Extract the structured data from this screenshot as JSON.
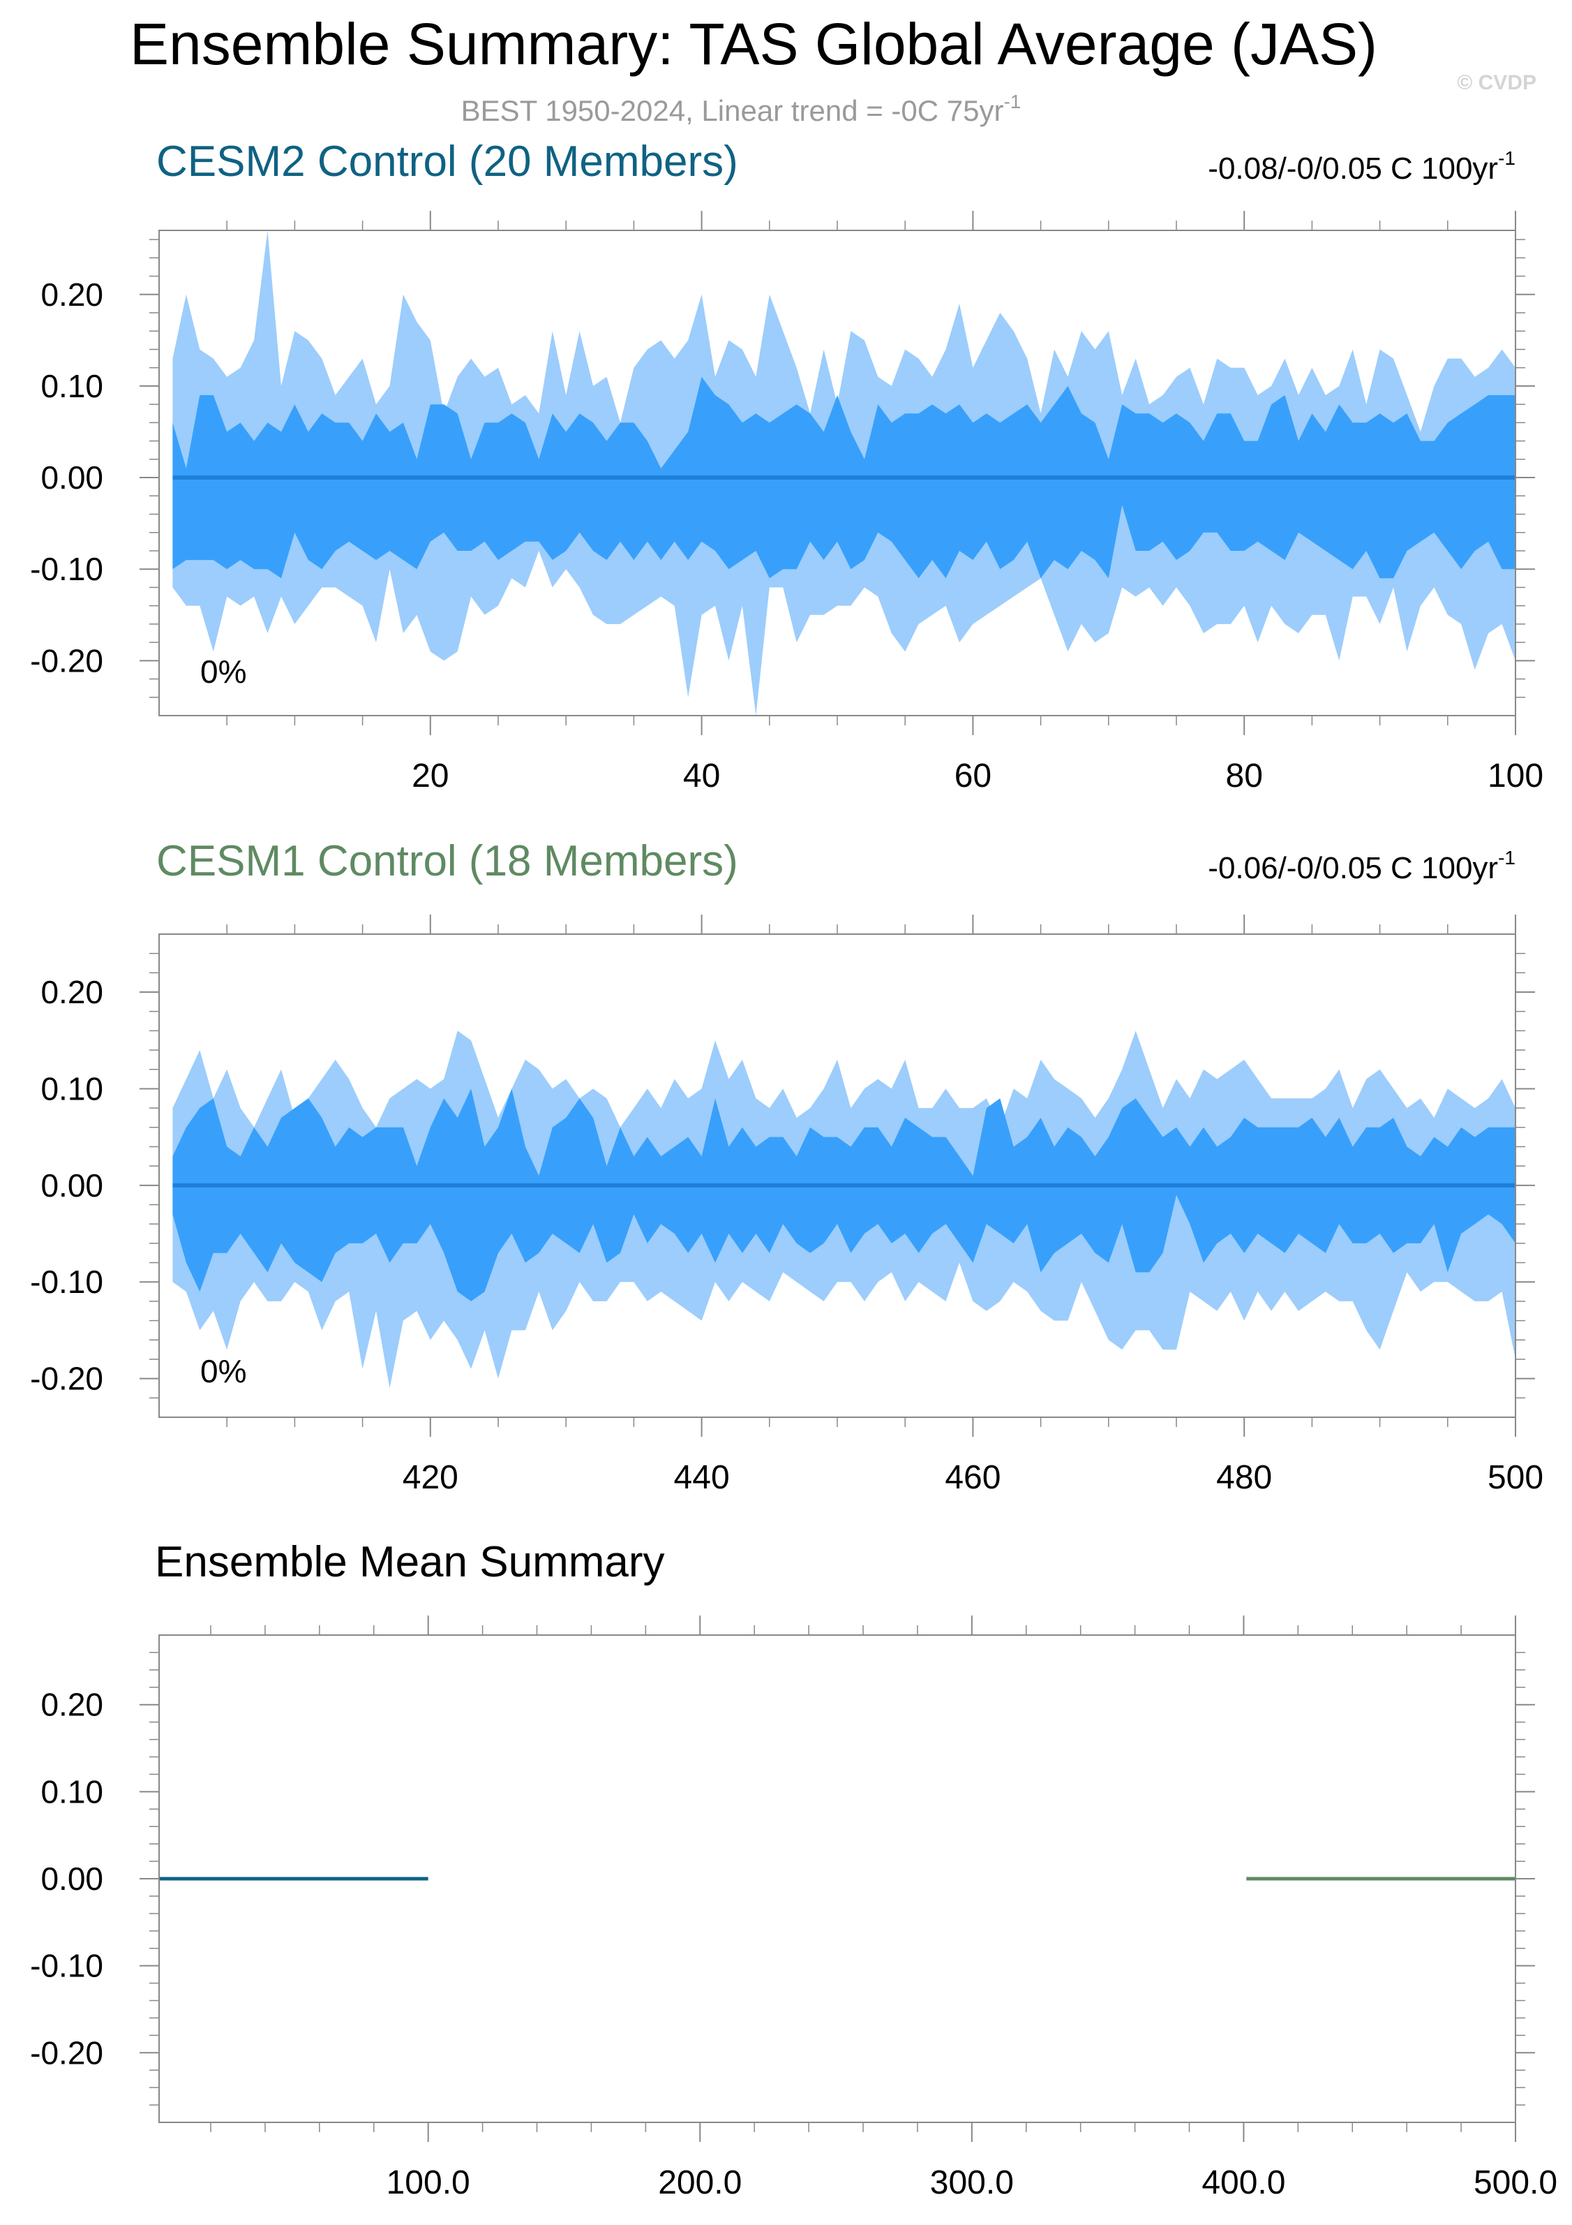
{
  "title": "Ensemble Summary: TAS Global Average (JAS)",
  "subtitle_base": "BEST 1950-2024, Linear trend = -0C 75yr",
  "subtitle_sup": "-1",
  "watermark": "© CVDP",
  "colors": {
    "outer_band": "#9ccdfc",
    "inner_band": "#38a0fb",
    "mean_line": "#1f7fd8",
    "cesm2": "#0f6283",
    "cesm1": "#5f8a62",
    "frame": "#888888",
    "watermark": "#d4d4d4",
    "subtitle": "#9a9a9a"
  },
  "chart_data": [
    {
      "type": "area",
      "title": "CESM2 Control (20 Members)",
      "trend_base": "-0.08/-0/0.05 C 100yr",
      "trend_sup": "-1",
      "percent_label": "0%",
      "x": {
        "min": 1,
        "max": 100,
        "ticks": [
          20,
          40,
          60,
          80,
          100
        ],
        "tick_labels": [
          "20",
          "40",
          "60",
          "80",
          "100"
        ]
      },
      "ylim": [
        -0.26,
        0.27
      ],
      "yticks": [
        0.2,
        0.1,
        0.0,
        -0.1,
        -0.2
      ],
      "ytick_labels": [
        "0.20",
        "0.10",
        "0.00",
        "-0.10",
        "-0.20"
      ],
      "series": [
        {
          "name": "max",
          "values": [
            0.13,
            0.2,
            0.14,
            0.13,
            0.11,
            0.12,
            0.15,
            0.27,
            0.1,
            0.16,
            0.15,
            0.13,
            0.09,
            0.11,
            0.13,
            0.08,
            0.1,
            0.2,
            0.17,
            0.15,
            0.07,
            0.11,
            0.13,
            0.11,
            0.12,
            0.08,
            0.09,
            0.07,
            0.16,
            0.09,
            0.16,
            0.1,
            0.11,
            0.06,
            0.12,
            0.14,
            0.15,
            0.13,
            0.15,
            0.2,
            0.11,
            0.15,
            0.14,
            0.11,
            0.2,
            0.16,
            0.12,
            0.07,
            0.14,
            0.08,
            0.16,
            0.15,
            0.11,
            0.1,
            0.14,
            0.13,
            0.11,
            0.14,
            0.19,
            0.12,
            0.15,
            0.18,
            0.16,
            0.13,
            0.07,
            0.14,
            0.11,
            0.16,
            0.14,
            0.16,
            0.09,
            0.13,
            0.08,
            0.09,
            0.11,
            0.12,
            0.08,
            0.13,
            0.12,
            0.12,
            0.09,
            0.1,
            0.13,
            0.09,
            0.12,
            0.09,
            0.1,
            0.14,
            0.08,
            0.14,
            0.13,
            0.09,
            0.05,
            0.1,
            0.13,
            0.13,
            0.11,
            0.12,
            0.14,
            0.12
          ]
        },
        {
          "name": "p75",
          "values": [
            0.06,
            0.01,
            0.09,
            0.09,
            0.05,
            0.06,
            0.04,
            0.06,
            0.05,
            0.08,
            0.05,
            0.07,
            0.06,
            0.06,
            0.04,
            0.07,
            0.05,
            0.06,
            0.02,
            0.08,
            0.08,
            0.07,
            0.02,
            0.06,
            0.06,
            0.07,
            0.06,
            0.02,
            0.07,
            0.05,
            0.07,
            0.06,
            0.04,
            0.06,
            0.06,
            0.04,
            0.01,
            0.03,
            0.05,
            0.11,
            0.09,
            0.08,
            0.06,
            0.07,
            0.06,
            0.07,
            0.08,
            0.07,
            0.05,
            0.09,
            0.05,
            0.02,
            0.08,
            0.06,
            0.07,
            0.07,
            0.08,
            0.07,
            0.08,
            0.06,
            0.07,
            0.06,
            0.07,
            0.08,
            0.06,
            0.08,
            0.1,
            0.07,
            0.06,
            0.02,
            0.08,
            0.07,
            0.07,
            0.06,
            0.07,
            0.06,
            0.04,
            0.07,
            0.07,
            0.04,
            0.04,
            0.08,
            0.09,
            0.04,
            0.07,
            0.05,
            0.08,
            0.06,
            0.06,
            0.07,
            0.06,
            0.07,
            0.04,
            0.04,
            0.06,
            0.07,
            0.08,
            0.09,
            0.09,
            0.09
          ]
        },
        {
          "name": "p25",
          "values": [
            -0.1,
            -0.09,
            -0.09,
            -0.09,
            -0.1,
            -0.09,
            -0.1,
            -0.1,
            -0.11,
            -0.06,
            -0.09,
            -0.1,
            -0.08,
            -0.07,
            -0.08,
            -0.09,
            -0.08,
            -0.09,
            -0.1,
            -0.07,
            -0.06,
            -0.08,
            -0.08,
            -0.07,
            -0.09,
            -0.08,
            -0.07,
            -0.07,
            -0.09,
            -0.08,
            -0.06,
            -0.08,
            -0.09,
            -0.07,
            -0.09,
            -0.07,
            -0.09,
            -0.07,
            -0.09,
            -0.07,
            -0.08,
            -0.1,
            -0.09,
            -0.08,
            -0.11,
            -0.1,
            -0.1,
            -0.07,
            -0.09,
            -0.07,
            -0.1,
            -0.09,
            -0.06,
            -0.07,
            -0.09,
            -0.11,
            -0.09,
            -0.11,
            -0.08,
            -0.09,
            -0.07,
            -0.1,
            -0.09,
            -0.07,
            -0.11,
            -0.09,
            -0.1,
            -0.08,
            -0.09,
            -0.11,
            -0.03,
            -0.08,
            -0.08,
            -0.07,
            -0.09,
            -0.08,
            -0.06,
            -0.06,
            -0.08,
            -0.08,
            -0.07,
            -0.08,
            -0.09,
            -0.06,
            -0.07,
            -0.08,
            -0.09,
            -0.1,
            -0.08,
            -0.11,
            -0.11,
            -0.08,
            -0.07,
            -0.06,
            -0.08,
            -0.1,
            -0.08,
            -0.07,
            -0.1,
            -0.1
          ]
        },
        {
          "name": "min",
          "values": [
            -0.12,
            -0.14,
            -0.14,
            -0.19,
            -0.13,
            -0.14,
            -0.13,
            -0.17,
            -0.13,
            -0.16,
            -0.14,
            -0.12,
            -0.12,
            -0.13,
            -0.14,
            -0.18,
            -0.1,
            -0.17,
            -0.15,
            -0.19,
            -0.2,
            -0.19,
            -0.13,
            -0.15,
            -0.14,
            -0.11,
            -0.12,
            -0.08,
            -0.12,
            -0.1,
            -0.12,
            -0.15,
            -0.16,
            -0.16,
            -0.15,
            -0.14,
            -0.13,
            -0.14,
            -0.24,
            -0.15,
            -0.14,
            -0.2,
            -0.14,
            -0.26,
            -0.12,
            -0.12,
            -0.18,
            -0.15,
            -0.15,
            -0.14,
            -0.14,
            -0.12,
            -0.13,
            -0.17,
            -0.19,
            -0.16,
            -0.15,
            -0.14,
            -0.18,
            -0.16,
            -0.15,
            -0.14,
            -0.13,
            -0.12,
            -0.11,
            -0.15,
            -0.19,
            -0.16,
            -0.18,
            -0.17,
            -0.12,
            -0.13,
            -0.12,
            -0.14,
            -0.12,
            -0.14,
            -0.17,
            -0.16,
            -0.16,
            -0.14,
            -0.18,
            -0.14,
            -0.16,
            -0.17,
            -0.15,
            -0.15,
            -0.2,
            -0.13,
            -0.13,
            -0.16,
            -0.12,
            -0.19,
            -0.14,
            -0.12,
            -0.15,
            -0.16,
            -0.21,
            -0.17,
            -0.16,
            -0.2
          ]
        }
      ]
    },
    {
      "type": "area",
      "title": "CESM1 Control (18 Members)",
      "trend_base": "-0.06/-0/0.05 C 100yr",
      "trend_sup": "-1",
      "percent_label": "0%",
      "x": {
        "min": 401,
        "max": 500,
        "ticks": [
          420,
          440,
          460,
          480,
          500
        ],
        "tick_labels": [
          "420",
          "440",
          "460",
          "480",
          "500"
        ]
      },
      "ylim": [
        -0.24,
        0.26
      ],
      "yticks": [
        0.2,
        0.1,
        0.0,
        -0.1,
        -0.2
      ],
      "ytick_labels": [
        "0.20",
        "0.10",
        "0.00",
        "-0.10",
        "-0.20"
      ],
      "series": [
        {
          "name": "max",
          "values": [
            0.08,
            0.11,
            0.14,
            0.09,
            0.12,
            0.08,
            0.06,
            0.09,
            0.12,
            0.07,
            0.09,
            0.11,
            0.13,
            0.11,
            0.08,
            0.06,
            0.09,
            0.1,
            0.11,
            0.1,
            0.11,
            0.16,
            0.15,
            0.11,
            0.07,
            0.1,
            0.13,
            0.12,
            0.1,
            0.11,
            0.09,
            0.1,
            0.09,
            0.06,
            0.08,
            0.1,
            0.08,
            0.11,
            0.09,
            0.1,
            0.15,
            0.11,
            0.13,
            0.09,
            0.08,
            0.1,
            0.07,
            0.08,
            0.1,
            0.13,
            0.08,
            0.1,
            0.11,
            0.1,
            0.13,
            0.08,
            0.08,
            0.1,
            0.08,
            0.08,
            0.09,
            0.06,
            0.1,
            0.09,
            0.13,
            0.11,
            0.1,
            0.09,
            0.07,
            0.09,
            0.12,
            0.16,
            0.12,
            0.08,
            0.11,
            0.09,
            0.12,
            0.11,
            0.12,
            0.13,
            0.11,
            0.09,
            0.09,
            0.09,
            0.09,
            0.1,
            0.12,
            0.08,
            0.11,
            0.12,
            0.1,
            0.08,
            0.09,
            0.07,
            0.1,
            0.09,
            0.08,
            0.09,
            0.11,
            0.08
          ]
        },
        {
          "name": "p75",
          "values": [
            0.03,
            0.06,
            0.08,
            0.09,
            0.04,
            0.03,
            0.06,
            0.04,
            0.07,
            0.08,
            0.09,
            0.07,
            0.04,
            0.06,
            0.05,
            0.06,
            0.06,
            0.06,
            0.02,
            0.06,
            0.09,
            0.07,
            0.1,
            0.04,
            0.06,
            0.1,
            0.04,
            0.01,
            0.06,
            0.07,
            0.09,
            0.07,
            0.02,
            0.06,
            0.03,
            0.05,
            0.03,
            0.04,
            0.05,
            0.03,
            0.09,
            0.04,
            0.06,
            0.04,
            0.05,
            0.05,
            0.03,
            0.06,
            0.05,
            0.05,
            0.04,
            0.06,
            0.06,
            0.04,
            0.07,
            0.06,
            0.05,
            0.05,
            0.03,
            0.01,
            0.08,
            0.09,
            0.04,
            0.05,
            0.07,
            0.04,
            0.06,
            0.05,
            0.03,
            0.05,
            0.08,
            0.09,
            0.07,
            0.05,
            0.06,
            0.04,
            0.06,
            0.04,
            0.05,
            0.07,
            0.06,
            0.06,
            0.06,
            0.06,
            0.07,
            0.05,
            0.07,
            0.04,
            0.06,
            0.06,
            0.07,
            0.04,
            0.03,
            0.05,
            0.04,
            0.06,
            0.05,
            0.06,
            0.06,
            0.06
          ]
        },
        {
          "name": "p25",
          "values": [
            -0.03,
            -0.08,
            -0.11,
            -0.07,
            -0.07,
            -0.05,
            -0.07,
            -0.09,
            -0.06,
            -0.08,
            -0.09,
            -0.1,
            -0.07,
            -0.06,
            -0.06,
            -0.05,
            -0.08,
            -0.06,
            -0.06,
            -0.04,
            -0.07,
            -0.11,
            -0.12,
            -0.11,
            -0.07,
            -0.05,
            -0.08,
            -0.07,
            -0.05,
            -0.06,
            -0.07,
            -0.04,
            -0.08,
            -0.07,
            -0.03,
            -0.06,
            -0.04,
            -0.05,
            -0.07,
            -0.05,
            -0.08,
            -0.05,
            -0.07,
            -0.05,
            -0.07,
            -0.04,
            -0.06,
            -0.07,
            -0.06,
            -0.04,
            -0.07,
            -0.05,
            -0.04,
            -0.06,
            -0.05,
            -0.07,
            -0.05,
            -0.04,
            -0.06,
            -0.08,
            -0.04,
            -0.05,
            -0.06,
            -0.04,
            -0.09,
            -0.07,
            -0.06,
            -0.05,
            -0.07,
            -0.08,
            -0.04,
            -0.09,
            -0.09,
            -0.07,
            -0.01,
            -0.04,
            -0.08,
            -0.06,
            -0.05,
            -0.07,
            -0.05,
            -0.06,
            -0.07,
            -0.05,
            -0.06,
            -0.07,
            -0.04,
            -0.06,
            -0.06,
            -0.05,
            -0.07,
            -0.06,
            -0.06,
            -0.04,
            -0.09,
            -0.05,
            -0.04,
            -0.03,
            -0.04,
            -0.06
          ]
        },
        {
          "name": "min",
          "values": [
            -0.1,
            -0.11,
            -0.15,
            -0.13,
            -0.17,
            -0.12,
            -0.1,
            -0.12,
            -0.12,
            -0.1,
            -0.11,
            -0.15,
            -0.12,
            -0.11,
            -0.19,
            -0.13,
            -0.21,
            -0.14,
            -0.13,
            -0.16,
            -0.14,
            -0.16,
            -0.19,
            -0.15,
            -0.2,
            -0.15,
            -0.15,
            -0.11,
            -0.15,
            -0.13,
            -0.1,
            -0.12,
            -0.12,
            -0.1,
            -0.1,
            -0.12,
            -0.11,
            -0.12,
            -0.13,
            -0.14,
            -0.1,
            -0.12,
            -0.1,
            -0.11,
            -0.12,
            -0.09,
            -0.1,
            -0.11,
            -0.12,
            -0.1,
            -0.1,
            -0.12,
            -0.1,
            -0.09,
            -0.12,
            -0.1,
            -0.11,
            -0.12,
            -0.08,
            -0.12,
            -0.13,
            -0.12,
            -0.1,
            -0.11,
            -0.13,
            -0.14,
            -0.14,
            -0.1,
            -0.13,
            -0.16,
            -0.17,
            -0.15,
            -0.15,
            -0.17,
            -0.17,
            -0.11,
            -0.12,
            -0.13,
            -0.11,
            -0.14,
            -0.11,
            -0.13,
            -0.11,
            -0.13,
            -0.12,
            -0.11,
            -0.12,
            -0.12,
            -0.15,
            -0.17,
            -0.13,
            -0.09,
            -0.11,
            -0.1,
            -0.1,
            -0.11,
            -0.12,
            -0.12,
            -0.11,
            -0.18
          ]
        }
      ]
    },
    {
      "type": "line",
      "title": "Ensemble Mean Summary",
      "x": {
        "min": 1,
        "max": 500,
        "ticks": [
          100,
          200,
          300,
          400,
          500
        ],
        "tick_labels": [
          "100.0",
          "200.0",
          "300.0",
          "400.0",
          "500.0"
        ]
      },
      "ylim": [
        -0.28,
        0.28
      ],
      "yticks": [
        0.2,
        0.1,
        0.0,
        -0.1,
        -0.2
      ],
      "ytick_labels": [
        "0.20",
        "0.10",
        "0.00",
        "-0.10",
        "-0.20"
      ],
      "series": [
        {
          "name": "CESM2 Control",
          "x": [
            1,
            100
          ],
          "values": [
            0.0,
            0.0
          ]
        },
        {
          "name": "CESM1 Control",
          "x": [
            401,
            500
          ],
          "values": [
            0.0,
            0.0
          ]
        }
      ]
    }
  ]
}
